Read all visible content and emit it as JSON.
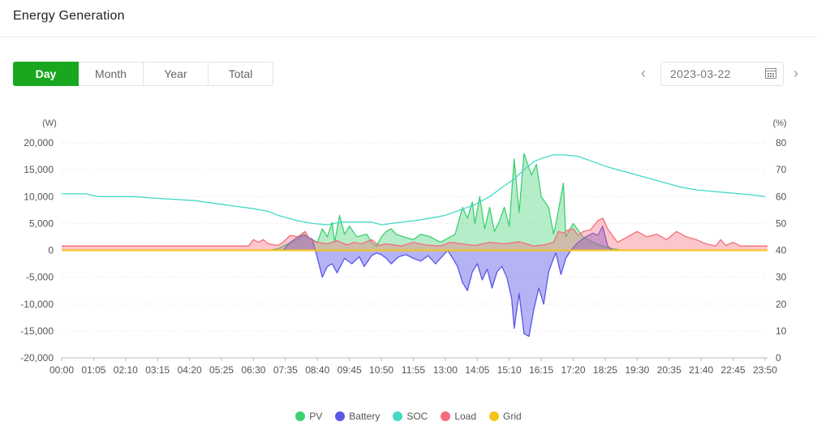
{
  "page": {
    "title": "Energy Generation"
  },
  "tabs": [
    {
      "label": "Day",
      "active": true
    },
    {
      "label": "Month",
      "active": false
    },
    {
      "label": "Year",
      "active": false
    },
    {
      "label": "Total",
      "active": false
    }
  ],
  "date_picker": {
    "value": "2023-03-22",
    "prev_icon": "chevron-left-icon",
    "next_icon": "chevron-right-icon",
    "calendar_icon": "calendar-icon"
  },
  "colors": {
    "pv": "#3ecf72",
    "battery": "#5b56e6",
    "soc": "#44d9c6",
    "load": "#f46d7a",
    "grid": "#f5c518",
    "active_tab": "#19a71f"
  },
  "chart_data": {
    "type": "area",
    "title": "",
    "left_axis": {
      "unit_label": "(W)",
      "min": -20000,
      "max": 20000,
      "ticks": [
        -20000,
        -15000,
        -10000,
        -5000,
        0,
        5000,
        10000,
        15000,
        20000
      ],
      "tick_labels": [
        "-20,000",
        "-15,000",
        "-10,000",
        "-5,000",
        "0",
        "5,000",
        "10,000",
        "15,000",
        "20,000"
      ]
    },
    "right_axis": {
      "unit_label": "(%)",
      "min": 0,
      "max": 80,
      "ticks": [
        0,
        10,
        20,
        30,
        40,
        50,
        60,
        70,
        80
      ],
      "tick_labels": [
        "0",
        "10",
        "20",
        "30",
        "40",
        "50",
        "60",
        "70",
        "80"
      ]
    },
    "x_tick_labels": [
      "00:00",
      "01:05",
      "02:10",
      "03:15",
      "04:20",
      "05:25",
      "06:30",
      "07:35",
      "08:40",
      "09:45",
      "10:50",
      "11:55",
      "13:00",
      "14:05",
      "15:10",
      "16:15",
      "17:20",
      "18:25",
      "19:30",
      "20:35",
      "21:40",
      "22:45",
      "23:50"
    ],
    "x_range": [
      "00:00",
      "23:55"
    ],
    "grid": true,
    "legend_position": "bottom-center",
    "series": [
      {
        "name": "PV",
        "axis": "left",
        "points": [
          [
            "00:00",
            0
          ],
          [
            "07:00",
            0
          ],
          [
            "07:20",
            300
          ],
          [
            "07:40",
            1200
          ],
          [
            "08:00",
            2000
          ],
          [
            "08:10",
            3200
          ],
          [
            "08:20",
            2500
          ],
          [
            "08:40",
            1500
          ],
          [
            "08:50",
            4000
          ],
          [
            "09:00",
            2500
          ],
          [
            "09:10",
            5200
          ],
          [
            "09:15",
            1500
          ],
          [
            "09:25",
            6500
          ],
          [
            "09:35",
            3000
          ],
          [
            "09:45",
            4500
          ],
          [
            "10:00",
            2500
          ],
          [
            "10:20",
            3000
          ],
          [
            "10:30",
            1500
          ],
          [
            "10:40",
            800
          ],
          [
            "10:50",
            2500
          ],
          [
            "11:00",
            3500
          ],
          [
            "11:10",
            4000
          ],
          [
            "11:20",
            3000
          ],
          [
            "11:35",
            2500
          ],
          [
            "11:55",
            2000
          ],
          [
            "12:10",
            3000
          ],
          [
            "12:30",
            2500
          ],
          [
            "12:50",
            1500
          ],
          [
            "13:00",
            2000
          ],
          [
            "13:20",
            3000
          ],
          [
            "13:35",
            8000
          ],
          [
            "13:45",
            6000
          ],
          [
            "13:55",
            9000
          ],
          [
            "14:00",
            5000
          ],
          [
            "14:10",
            10000
          ],
          [
            "14:20",
            4000
          ],
          [
            "14:30",
            8000
          ],
          [
            "14:40",
            3500
          ],
          [
            "14:50",
            5500
          ],
          [
            "15:00",
            8000
          ],
          [
            "15:10",
            4500
          ],
          [
            "15:20",
            17000
          ],
          [
            "15:30",
            7000
          ],
          [
            "15:40",
            18000
          ],
          [
            "15:55",
            14000
          ],
          [
            "16:05",
            16000
          ],
          [
            "16:15",
            10000
          ],
          [
            "16:30",
            8000
          ],
          [
            "16:40",
            3000
          ],
          [
            "16:45",
            5000
          ],
          [
            "17:00",
            12500
          ],
          [
            "17:05",
            2500
          ],
          [
            "17:20",
            5000
          ],
          [
            "17:40",
            2500
          ],
          [
            "18:00",
            1500
          ],
          [
            "18:20",
            800
          ],
          [
            "18:40",
            300
          ],
          [
            "19:00",
            0
          ],
          [
            "23:55",
            0
          ]
        ]
      },
      {
        "name": "Battery",
        "axis": "left",
        "points": [
          [
            "00:00",
            0
          ],
          [
            "07:30",
            0
          ],
          [
            "07:45",
            1500
          ],
          [
            "08:00",
            2500
          ],
          [
            "08:15",
            2800
          ],
          [
            "08:30",
            2000
          ],
          [
            "08:40",
            -1500
          ],
          [
            "08:50",
            -5000
          ],
          [
            "09:00",
            -3000
          ],
          [
            "09:10",
            -2500
          ],
          [
            "09:20",
            -4200
          ],
          [
            "09:35",
            -1500
          ],
          [
            "09:50",
            -2500
          ],
          [
            "10:05",
            -1200
          ],
          [
            "10:15",
            -3000
          ],
          [
            "10:30",
            -1000
          ],
          [
            "10:40",
            -500
          ],
          [
            "10:50",
            -800
          ],
          [
            "11:00",
            -1500
          ],
          [
            "11:10",
            -2500
          ],
          [
            "11:25",
            -1200
          ],
          [
            "11:40",
            -800
          ],
          [
            "11:55",
            -1500
          ],
          [
            "12:10",
            -2000
          ],
          [
            "12:25",
            -1000
          ],
          [
            "12:40",
            -2500
          ],
          [
            "12:55",
            -1000
          ],
          [
            "13:05",
            0
          ],
          [
            "13:15",
            -1500
          ],
          [
            "13:25",
            -3000
          ],
          [
            "13:35",
            -6000
          ],
          [
            "13:45",
            -7500
          ],
          [
            "13:55",
            -4000
          ],
          [
            "14:05",
            -2500
          ],
          [
            "14:15",
            -5500
          ],
          [
            "14:25",
            -3500
          ],
          [
            "14:35",
            -7000
          ],
          [
            "14:45",
            -4000
          ],
          [
            "14:55",
            -3000
          ],
          [
            "15:05",
            -5000
          ],
          [
            "15:15",
            -9000
          ],
          [
            "15:20",
            -14500
          ],
          [
            "15:30",
            -8000
          ],
          [
            "15:40",
            -15500
          ],
          [
            "15:50",
            -16000
          ],
          [
            "16:00",
            -11000
          ],
          [
            "16:10",
            -7000
          ],
          [
            "16:20",
            -10000
          ],
          [
            "16:30",
            -4000
          ],
          [
            "16:40",
            -1500
          ],
          [
            "16:45",
            -500
          ],
          [
            "16:55",
            -4500
          ],
          [
            "17:05",
            -1500
          ],
          [
            "17:15",
            0
          ],
          [
            "17:30",
            1500
          ],
          [
            "17:45",
            2500
          ],
          [
            "18:00",
            3200
          ],
          [
            "18:10",
            2800
          ],
          [
            "18:20",
            4500
          ],
          [
            "18:30",
            800
          ],
          [
            "18:40",
            0
          ],
          [
            "23:55",
            0
          ]
        ]
      },
      {
        "name": "SOC",
        "axis": "right",
        "points": [
          [
            "00:00",
            61
          ],
          [
            "00:50",
            61
          ],
          [
            "01:15",
            60
          ],
          [
            "02:30",
            60
          ],
          [
            "03:00",
            59.5
          ],
          [
            "04:30",
            58.5
          ],
          [
            "05:30",
            57
          ],
          [
            "06:30",
            55.5
          ],
          [
            "07:00",
            54.5
          ],
          [
            "07:20",
            53
          ],
          [
            "07:40",
            52
          ],
          [
            "08:00",
            51
          ],
          [
            "08:30",
            50
          ],
          [
            "09:00",
            49.5
          ],
          [
            "09:30",
            50.5
          ],
          [
            "10:30",
            50.5
          ],
          [
            "10:50",
            49.5
          ],
          [
            "11:10",
            50
          ],
          [
            "11:55",
            51
          ],
          [
            "12:30",
            52
          ],
          [
            "13:00",
            53
          ],
          [
            "13:30",
            55
          ],
          [
            "14:00",
            57
          ],
          [
            "14:30",
            60
          ],
          [
            "15:00",
            64
          ],
          [
            "15:20",
            66.5
          ],
          [
            "15:40",
            70
          ],
          [
            "16:00",
            73
          ],
          [
            "16:20",
            74.5
          ],
          [
            "16:40",
            75.5
          ],
          [
            "17:00",
            75.5
          ],
          [
            "17:30",
            75
          ],
          [
            "18:00",
            73
          ],
          [
            "18:30",
            71
          ],
          [
            "19:00",
            69.5
          ],
          [
            "19:30",
            68
          ],
          [
            "20:00",
            66.5
          ],
          [
            "20:30",
            65
          ],
          [
            "21:00",
            63.5
          ],
          [
            "21:30",
            62.5
          ],
          [
            "22:00",
            62
          ],
          [
            "22:30",
            61.5
          ],
          [
            "23:00",
            61
          ],
          [
            "23:30",
            60.5
          ],
          [
            "23:50",
            60
          ]
        ]
      },
      {
        "name": "Load",
        "axis": "left",
        "points": [
          [
            "00:00",
            800
          ],
          [
            "06:20",
            800
          ],
          [
            "06:30",
            2000
          ],
          [
            "06:40",
            1500
          ],
          [
            "06:50",
            2000
          ],
          [
            "07:00",
            1200
          ],
          [
            "07:20",
            900
          ],
          [
            "07:30",
            1500
          ],
          [
            "07:45",
            2800
          ],
          [
            "08:00",
            2500
          ],
          [
            "08:15",
            3500
          ],
          [
            "08:25",
            2000
          ],
          [
            "08:40",
            1500
          ],
          [
            "09:00",
            1200
          ],
          [
            "09:20",
            1800
          ],
          [
            "09:40",
            1000
          ],
          [
            "09:55",
            1500
          ],
          [
            "10:10",
            1200
          ],
          [
            "10:30",
            2000
          ],
          [
            "10:45",
            900
          ],
          [
            "11:00",
            1200
          ],
          [
            "11:30",
            800
          ],
          [
            "11:55",
            1500
          ],
          [
            "12:20",
            1000
          ],
          [
            "12:50",
            800
          ],
          [
            "13:10",
            1500
          ],
          [
            "13:35",
            1200
          ],
          [
            "14:00",
            900
          ],
          [
            "14:30",
            1500
          ],
          [
            "15:00",
            1200
          ],
          [
            "15:30",
            1600
          ],
          [
            "16:00",
            800
          ],
          [
            "16:20",
            1000
          ],
          [
            "16:40",
            1500
          ],
          [
            "16:50",
            3500
          ],
          [
            "17:00",
            3200
          ],
          [
            "17:10",
            3800
          ],
          [
            "17:20",
            4000
          ],
          [
            "17:30",
            2800
          ],
          [
            "17:40",
            3500
          ],
          [
            "17:55",
            3800
          ],
          [
            "18:10",
            5500
          ],
          [
            "18:20",
            6000
          ],
          [
            "18:30",
            4000
          ],
          [
            "18:50",
            1500
          ],
          [
            "19:10",
            2500
          ],
          [
            "19:30",
            3500
          ],
          [
            "19:50",
            2500
          ],
          [
            "20:10",
            3000
          ],
          [
            "20:30",
            2000
          ],
          [
            "20:50",
            3500
          ],
          [
            "21:10",
            2500
          ],
          [
            "21:30",
            2000
          ],
          [
            "21:50",
            1200
          ],
          [
            "22:10",
            800
          ],
          [
            "22:20",
            2000
          ],
          [
            "22:30",
            900
          ],
          [
            "22:45",
            1500
          ],
          [
            "23:00",
            800
          ],
          [
            "23:55",
            800
          ]
        ]
      },
      {
        "name": "Grid",
        "axis": "left",
        "points": [
          [
            "00:00",
            0
          ],
          [
            "23:55",
            0
          ]
        ]
      }
    ]
  }
}
